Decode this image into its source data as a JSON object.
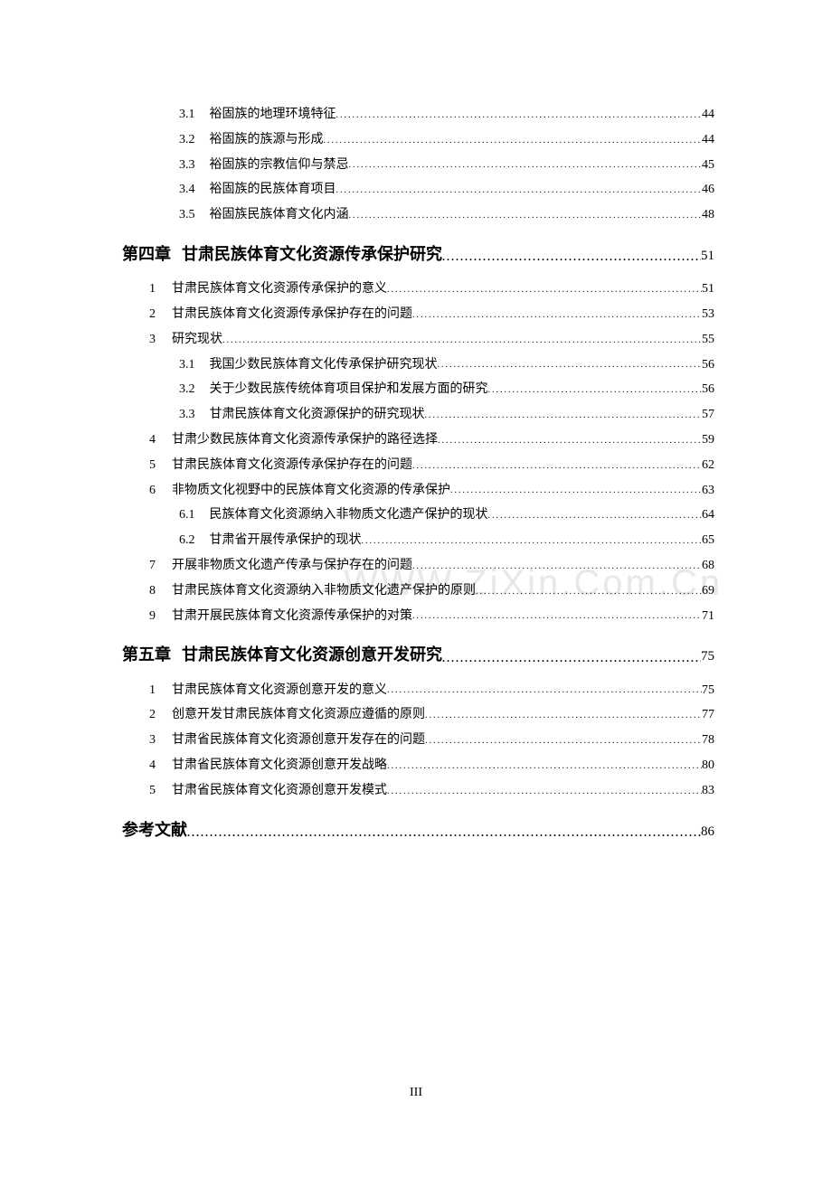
{
  "watermark": "WWW.ZiXin.Com.Cn",
  "footer": "III",
  "dots": "......................................................................................................................................................",
  "entries": [
    {
      "level": "sub3",
      "num": "3.1",
      "label": "裕固族的地理环境特征",
      "page": "44"
    },
    {
      "level": "sub3",
      "num": "3.2",
      "label": "裕固族的族源与形成",
      "page": "44"
    },
    {
      "level": "sub3",
      "num": "3.3",
      "label": "裕固族的宗教信仰与禁忌",
      "page": "45"
    },
    {
      "level": "sub3",
      "num": "3.4",
      "label": "裕固族的民族体育项目",
      "page": "46"
    },
    {
      "level": "sub3",
      "num": "3.5",
      "label": "裕固族民族体育文化内涵",
      "page": "48"
    },
    {
      "level": "chapter",
      "num": "第四章",
      "label": "甘肃民族体育文化资源传承保护研究",
      "page": "51"
    },
    {
      "level": "sub1",
      "num": "1",
      "label": "甘肃民族体育文化资源传承保护的意义",
      "page": "51"
    },
    {
      "level": "sub1",
      "num": "2",
      "label": "甘肃民族体育文化资源传承保护存在的问题",
      "page": "53"
    },
    {
      "level": "sub1",
      "num": "3",
      "label": "研究现状",
      "page": "55"
    },
    {
      "level": "sub3",
      "num": "3.1",
      "label": "我国少数民族体育文化传承保护研究现状",
      "page": "56"
    },
    {
      "level": "sub3",
      "num": "3.2",
      "label": "关于少数民族传统体育项目保护和发展方面的研究",
      "page": "56"
    },
    {
      "level": "sub3",
      "num": "3.3",
      "label": "甘肃民族体育文化资源保护的研究现状",
      "page": "57"
    },
    {
      "level": "sub1",
      "num": "4",
      "label": "甘肃少数民族体育文化资源传承保护的路径选择",
      "page": "59"
    },
    {
      "level": "sub1",
      "num": "5",
      "label": "甘肃民族体育文化资源传承保护存在的问题",
      "page": "62"
    },
    {
      "level": "sub1",
      "num": "6",
      "label": "非物质文化视野中的民族体育文化资源的传承保护",
      "page": "63"
    },
    {
      "level": "sub3",
      "num": "6.1",
      "label": "民族体育文化资源纳入非物质文化遗产保护的现状",
      "page": "64"
    },
    {
      "level": "sub3",
      "num": "6.2",
      "label": "甘肃省开展传承保护的现状",
      "page": "65"
    },
    {
      "level": "sub1",
      "num": "7",
      "label": "开展非物质文化遗产传承与保护存在的问题",
      "page": "68"
    },
    {
      "level": "sub1",
      "num": "8",
      "label": "甘肃民族体育文化资源纳入非物质文化遗产保护的原则",
      "page": "69"
    },
    {
      "level": "sub1",
      "num": "9",
      "label": "甘肃开展民族体育文化资源传承保护的对策",
      "page": "71"
    },
    {
      "level": "chapter",
      "num": "第五章",
      "label": "甘肃民族体育文化资源创意开发研究",
      "page": "75"
    },
    {
      "level": "sub1",
      "num": "1",
      "label": "甘肃民族体育文化资源创意开发的意义",
      "page": "75"
    },
    {
      "level": "sub1",
      "num": "2",
      "label": "创意开发甘肃民族体育文化资源应遵循的原则",
      "page": "77"
    },
    {
      "level": "sub1",
      "num": "3",
      "label": "甘肃省民族体育文化资源创意开发存在的问题",
      "page": "78"
    },
    {
      "level": "sub1",
      "num": "4",
      "label": "甘肃省民族体育文化资源创意开发战略",
      "page": "80"
    },
    {
      "level": "sub1",
      "num": "5",
      "label": "甘肃省民族体育文化资源创意开发模式",
      "page": "83"
    },
    {
      "level": "ref",
      "num": "",
      "label": "参考文献",
      "page": "86"
    }
  ]
}
